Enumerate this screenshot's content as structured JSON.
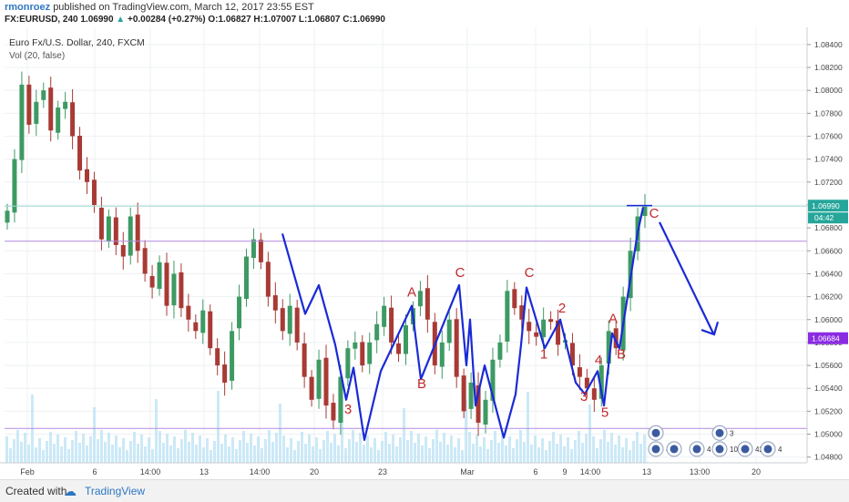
{
  "header": {
    "author": "rmonroez",
    "published": "published on TradingView.com, March 12, 2017 23:55 EST",
    "symbol_line": "FX:EURUSD, 240  1.06990",
    "change": "+0.00284 (+0.27%)",
    "ohlc": "O:1.06827 H:1.07007 L:1.06807 C:1.06990",
    "up_arrow": "▲"
  },
  "legend": {
    "title": "Euro Fx/U.S. Dollar, 240, FXCM",
    "vol": "Vol (20, false)"
  },
  "footer": {
    "created": "Created with",
    "brand": "TradingView",
    "logo_icon": "tradingview-logo-icon"
  },
  "colors": {
    "up": "#3d9a63",
    "down": "#a83a35",
    "wave": "#1a2ad6",
    "wave_label": "#c0282b",
    "hline": "#b28be0",
    "price_badge": "#26a69a",
    "level_badge": "#8a2be2",
    "volume": "#bfe3f5"
  },
  "badges": {
    "current_price": "1.06990",
    "countdown": "04:42",
    "level_price": "1.06684"
  },
  "chart_data": {
    "type": "candlestick",
    "title": "Euro Fx/U.S. Dollar, 240, FXCM",
    "y_ticks": [
      "1.08400",
      "1.08200",
      "1.08000",
      "1.07800",
      "1.07600",
      "1.07400",
      "1.07200",
      "1.07000",
      "1.06800",
      "1.06600",
      "1.06400",
      "1.06200",
      "1.06000",
      "1.05800",
      "1.05600",
      "1.05400",
      "1.05200",
      "1.05000",
      "1.04800"
    ],
    "ylim": [
      1.0475,
      1.0855
    ],
    "x_ticks": [
      "Feb",
      "6",
      "14:00",
      "13",
      "14:00",
      "20",
      "23",
      "Mar",
      "6",
      "9",
      "14:00",
      "13",
      "13:00",
      "20"
    ],
    "close_path": [
      1.0695,
      1.074,
      1.0805,
      1.077,
      1.079,
      1.08,
      1.0765,
      1.0785,
      1.079,
      1.076,
      1.073,
      1.072,
      1.07,
      1.067,
      1.069,
      1.0665,
      1.0655,
      1.069,
      1.066,
      1.064,
      1.0628,
      1.065,
      1.0612,
      1.064,
      1.061,
      1.06,
      1.059,
      1.0608,
      1.0575,
      1.056,
      1.0545,
      1.059,
      1.062,
      1.0655,
      1.067,
      1.065,
      1.062,
      1.0608,
      1.059,
      1.0612,
      1.058,
      1.055,
      1.053,
      1.0565,
      1.0525,
      1.0512,
      1.055,
      1.0575,
      1.058,
      1.056,
      1.058,
      1.0596,
      1.0612,
      1.058,
      1.057,
      1.0595,
      1.061,
      1.0625,
      1.06,
      1.056,
      1.058,
      1.06,
      1.055,
      1.052,
      1.0545,
      1.051,
      1.053,
      1.0565,
      1.058,
      1.0625,
      1.061,
      1.06,
      1.059,
      1.0585,
      1.06,
      1.0598,
      1.0578,
      1.0582,
      1.056,
      1.055,
      1.054,
      1.053,
      1.056,
      1.059,
      1.0575,
      1.062,
      1.066,
      1.069,
      1.0699
    ],
    "volume_level": "low",
    "horizontal_lines": [
      1.06684,
      1.0505
    ],
    "wave_path": [
      [
        310,
        1.0675
      ],
      [
        335,
        1.0605
      ],
      [
        350,
        1.063
      ],
      [
        368,
        1.0578
      ],
      [
        380,
        1.053
      ],
      [
        388,
        1.0558
      ],
      [
        400,
        1.0495
      ],
      [
        418,
        1.0555
      ],
      [
        452,
        1.0612
      ],
      [
        462,
        1.0548
      ],
      [
        504,
        1.063
      ],
      [
        512,
        1.056
      ],
      [
        516,
        1.06
      ],
      [
        522,
        1.0525
      ],
      [
        532,
        1.056
      ],
      [
        553,
        1.0497
      ],
      [
        566,
        1.0535
      ],
      [
        572,
        1.0578
      ],
      [
        578,
        1.0628
      ],
      [
        598,
        1.0575
      ],
      [
        615,
        1.06
      ],
      [
        632,
        1.0545
      ],
      [
        642,
        1.0535
      ],
      [
        656,
        1.0555
      ],
      [
        663,
        1.0525
      ],
      [
        672,
        1.0588
      ],
      [
        680,
        1.0575
      ],
      [
        700,
        1.0676
      ],
      [
        706,
        1.0698
      ]
    ],
    "projection_path": [
      [
        724,
        1.0685
      ],
      [
        783,
        1.0588
      ]
    ],
    "projection_arrowhead": [
      [
        770,
        1.0591
      ],
      [
        784,
        1.0587
      ],
      [
        788,
        1.0598
      ]
    ],
    "labels": [
      {
        "text": "A",
        "x": 452,
        "y": 1.062
      },
      {
        "text": "C",
        "x": 505,
        "y": 1.0637
      },
      {
        "text": "3",
        "x": 382,
        "y": 1.0518
      },
      {
        "text": "B",
        "x": 463,
        "y": 1.054
      },
      {
        "text": "C",
        "x": 581,
        "y": 1.0637
      },
      {
        "text": "2",
        "x": 617,
        "y": 1.0606
      },
      {
        "text": "1",
        "x": 597,
        "y": 1.0566
      },
      {
        "text": "4",
        "x": 657,
        "y": 1.0561
      },
      {
        "text": "3",
        "x": 641,
        "y": 1.0529
      },
      {
        "text": "5",
        "x": 664,
        "y": 1.0515
      },
      {
        "text": "A",
        "x": 673,
        "y": 1.0597
      },
      {
        "text": "B",
        "x": 682,
        "y": 1.0566
      },
      {
        "text": "C",
        "x": 718,
        "y": 1.0689
      }
    ],
    "top_line": {
      "x1": 688,
      "x2": 716,
      "y": 1.06995
    },
    "event_markers": [
      {
        "x": 720,
        "y": 1.0501,
        "label": ""
      },
      {
        "x": 790,
        "y": 1.0501,
        "label": "3"
      },
      {
        "x": 720,
        "y": 1.0487,
        "label": "4"
      },
      {
        "x": 740,
        "y": 1.0487,
        "label": ""
      },
      {
        "x": 765,
        "y": 1.0487,
        "label": "4"
      },
      {
        "x": 790,
        "y": 1.0487,
        "label": "106"
      },
      {
        "x": 818,
        "y": 1.0487,
        "label": "42"
      },
      {
        "x": 843,
        "y": 1.0487,
        "label": "4"
      }
    ]
  }
}
